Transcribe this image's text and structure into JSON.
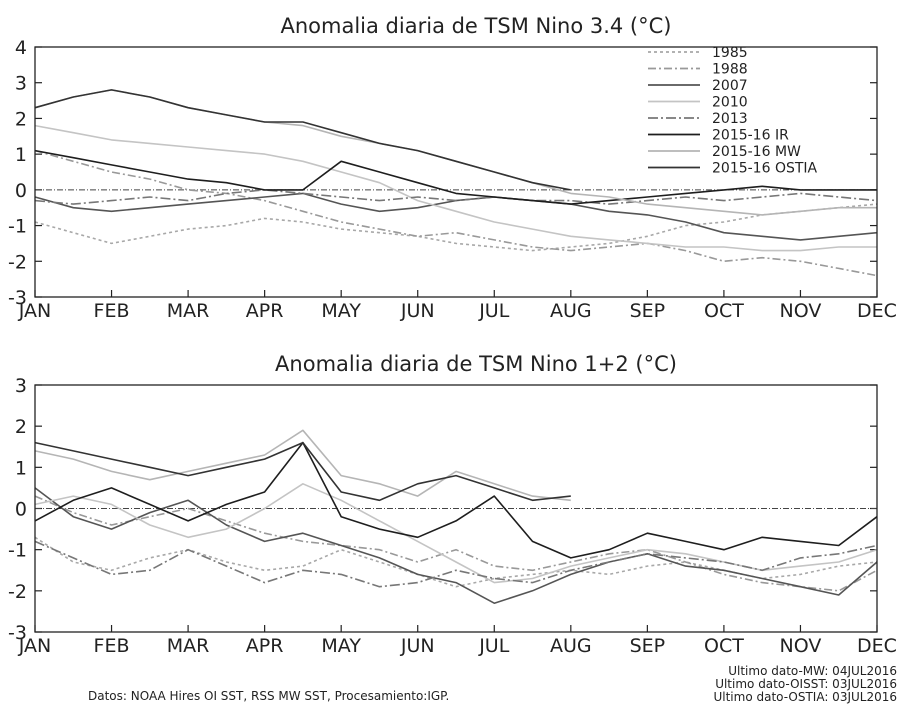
{
  "chart_data": [
    {
      "type": "line",
      "title": "Anomalia diaria de TSM Nino 3.4 (°C)",
      "xlabel": "",
      "ylabel": "",
      "ylim": [
        -3,
        4
      ],
      "yticks": [
        4,
        3,
        2,
        1,
        0,
        -1,
        -2,
        -3
      ],
      "categories": [
        "JAN",
        "FEB",
        "MAR",
        "APR",
        "MAY",
        "JUN",
        "JUL",
        "AUG",
        "SEP",
        "OCT",
        "NOV",
        "DEC"
      ],
      "x": [
        0,
        0.5,
        1,
        1.5,
        2,
        2.5,
        3,
        3.5,
        4,
        4.5,
        5,
        5.5,
        6,
        6.5,
        7,
        7.5,
        8,
        8.5,
        9,
        9.5,
        10,
        10.5,
        11
      ],
      "zero_line": true,
      "legend_position": "top-right",
      "series": [
        {
          "name": "1985",
          "color": "#a8a8a8",
          "dash": "3,3",
          "values": [
            -0.9,
            -1.2,
            -1.5,
            -1.3,
            -1.1,
            -1.0,
            -0.8,
            -0.9,
            -1.1,
            -1.2,
            -1.3,
            -1.5,
            -1.6,
            -1.7,
            -1.6,
            -1.5,
            -1.3,
            -1.0,
            -0.9,
            -0.7,
            -0.6,
            -0.5,
            -0.4
          ]
        },
        {
          "name": "1988",
          "color": "#999999",
          "dash": "8,3,2,3",
          "values": [
            1.1,
            0.8,
            0.5,
            0.3,
            0.0,
            -0.1,
            -0.3,
            -0.6,
            -0.9,
            -1.1,
            -1.3,
            -1.2,
            -1.4,
            -1.6,
            -1.7,
            -1.6,
            -1.5,
            -1.7,
            -2.0,
            -1.9,
            -2.0,
            -2.2,
            -2.4
          ]
        },
        {
          "name": "2007",
          "color": "#555555",
          "dash": "",
          "values": [
            -0.2,
            -0.5,
            -0.6,
            -0.5,
            -0.4,
            -0.3,
            -0.2,
            -0.1,
            -0.4,
            -0.6,
            -0.5,
            -0.3,
            -0.2,
            -0.3,
            -0.4,
            -0.6,
            -0.7,
            -0.9,
            -1.2,
            -1.3,
            -1.4,
            -1.3,
            -1.2
          ]
        },
        {
          "name": "2010",
          "color": "#c4c4c4",
          "dash": "",
          "values": [
            1.8,
            1.6,
            1.4,
            1.3,
            1.2,
            1.1,
            1.0,
            0.8,
            0.5,
            0.2,
            -0.3,
            -0.6,
            -0.9,
            -1.1,
            -1.3,
            -1.4,
            -1.5,
            -1.6,
            -1.6,
            -1.7,
            -1.7,
            -1.6,
            -1.6
          ]
        },
        {
          "name": "2013",
          "color": "#777777",
          "dash": "10,3,2,3",
          "values": [
            -0.3,
            -0.4,
            -0.3,
            -0.2,
            -0.3,
            -0.1,
            0.0,
            -0.1,
            -0.2,
            -0.3,
            -0.2,
            -0.3,
            -0.2,
            -0.3,
            -0.3,
            -0.4,
            -0.3,
            -0.2,
            -0.3,
            -0.2,
            -0.1,
            -0.2,
            -0.3
          ]
        },
        {
          "name": "2015-16 IR",
          "color": "#1e1e1e",
          "dash": "",
          "values": [
            1.1,
            0.9,
            0.7,
            0.5,
            0.3,
            0.2,
            0.0,
            0.0,
            0.8,
            0.5,
            0.2,
            -0.1,
            -0.2,
            -0.3,
            -0.4,
            -0.3,
            -0.2,
            -0.1,
            0.0,
            0.1,
            0.0,
            0.0,
            0.0
          ]
        },
        {
          "name": "2015-16 MW",
          "color": "#b5b5b5",
          "dash": "",
          "values": [
            2.3,
            2.6,
            2.8,
            2.6,
            2.3,
            2.1,
            1.9,
            1.8,
            1.5,
            1.3,
            1.1,
            0.8,
            0.5,
            0.2,
            -0.1,
            -0.2,
            -0.4,
            -0.5,
            -0.6,
            -0.7,
            -0.6,
            -0.5,
            -0.5
          ]
        },
        {
          "name": "2015-16 OSTIA",
          "color": "#333333",
          "dash": "",
          "values": [
            2.3,
            2.6,
            2.8,
            2.6,
            2.3,
            2.1,
            1.9,
            1.9,
            1.6,
            1.3,
            1.1,
            0.8,
            0.5,
            0.2,
            0.0,
            null,
            null,
            null,
            null,
            null,
            null,
            null,
            null
          ]
        }
      ]
    },
    {
      "type": "line",
      "title": "Anomalia diaria de TSM Nino 1+2 (°C)",
      "xlabel": "",
      "ylabel": "",
      "ylim": [
        -3,
        3
      ],
      "yticks": [
        3,
        2,
        1,
        0,
        -1,
        -2,
        -3
      ],
      "categories": [
        "JAN",
        "FEB",
        "MAR",
        "APR",
        "MAY",
        "JUN",
        "JUL",
        "AUG",
        "SEP",
        "OCT",
        "NOV",
        "DEC"
      ],
      "x": [
        0,
        0.5,
        1,
        1.5,
        2,
        2.5,
        3,
        3.5,
        4,
        4.5,
        5,
        5.5,
        6,
        6.5,
        7,
        7.5,
        8,
        8.5,
        9,
        9.5,
        10,
        10.5,
        11
      ],
      "zero_line": true,
      "series": [
        {
          "name": "1985",
          "color": "#a8a8a8",
          "dash": "3,3",
          "values": [
            -0.7,
            -1.3,
            -1.5,
            -1.2,
            -1.0,
            -1.3,
            -1.5,
            -1.4,
            -1.0,
            -1.3,
            -1.6,
            -1.9,
            -1.7,
            -1.6,
            -1.5,
            -1.6,
            -1.4,
            -1.3,
            -1.5,
            -1.7,
            -1.6,
            -1.4,
            -1.3
          ]
        },
        {
          "name": "1988",
          "color": "#999999",
          "dash": "8,3,2,3",
          "values": [
            0.3,
            -0.1,
            -0.4,
            -0.2,
            0.0,
            -0.3,
            -0.6,
            -0.8,
            -0.9,
            -1.0,
            -1.3,
            -1.0,
            -1.4,
            -1.5,
            -1.3,
            -1.1,
            -1.0,
            -1.3,
            -1.6,
            -1.8,
            -1.9,
            -2.0,
            -1.5
          ]
        },
        {
          "name": "2007",
          "color": "#555555",
          "dash": "",
          "values": [
            0.5,
            -0.2,
            -0.5,
            -0.1,
            0.2,
            -0.4,
            -0.8,
            -0.6,
            -0.9,
            -1.2,
            -1.6,
            -1.8,
            -2.3,
            -2.0,
            -1.6,
            -1.3,
            -1.1,
            -1.4,
            -1.5,
            -1.7,
            -1.9,
            -2.1,
            -1.3
          ]
        },
        {
          "name": "2010",
          "color": "#c4c4c4",
          "dash": "",
          "values": [
            0.1,
            0.3,
            0.1,
            -0.4,
            -0.7,
            -0.5,
            0.0,
            0.6,
            0.2,
            -0.3,
            -0.8,
            -1.3,
            -1.8,
            -1.7,
            -1.4,
            -1.2,
            -1.0,
            -1.1,
            -1.3,
            -1.5,
            -1.4,
            -1.3,
            -1.0
          ]
        },
        {
          "name": "2013",
          "color": "#777777",
          "dash": "10,3,2,3",
          "values": [
            -0.8,
            -1.2,
            -1.6,
            -1.5,
            -1.0,
            -1.4,
            -1.8,
            -1.5,
            -1.6,
            -1.9,
            -1.8,
            -1.5,
            -1.7,
            -1.8,
            -1.5,
            -1.3,
            -1.1,
            -1.2,
            -1.3,
            -1.5,
            -1.2,
            -1.1,
            -0.9
          ]
        },
        {
          "name": "2015-16 IR",
          "color": "#1e1e1e",
          "dash": "",
          "values": [
            -0.3,
            0.2,
            0.5,
            0.1,
            -0.3,
            0.1,
            0.4,
            1.6,
            -0.2,
            -0.5,
            -0.7,
            -0.3,
            0.3,
            -0.8,
            -1.2,
            -1.0,
            -0.6,
            -0.8,
            -1.0,
            -0.7,
            -0.8,
            -0.9,
            -0.2
          ]
        },
        {
          "name": "2015-16 MW",
          "color": "#b5b5b5",
          "dash": "",
          "values": [
            1.4,
            1.2,
            0.9,
            0.7,
            0.9,
            1.1,
            1.3,
            1.9,
            0.8,
            0.6,
            0.3,
            0.9,
            0.6,
            0.3,
            0.2,
            null,
            null,
            null,
            null,
            null,
            null,
            null,
            null
          ]
        },
        {
          "name": "2015-16 OSTIA",
          "color": "#333333",
          "dash": "",
          "values": [
            1.6,
            1.4,
            1.2,
            1.0,
            0.8,
            1.0,
            1.2,
            1.6,
            0.4,
            0.2,
            0.6,
            0.8,
            0.5,
            0.2,
            0.3,
            null,
            null,
            null,
            null,
            null,
            null,
            null,
            null
          ]
        }
      ]
    }
  ],
  "footer": {
    "source": "Datos: NOAA Hires OI SST, RSS MW SST,   Procesamiento:IGP.",
    "last_mw": "Ultimo dato-MW: 04JUL2016",
    "last_oisst": "Ultimo dato-OISST: 03JUL2016",
    "last_ostia": "Ultimo dato-OSTIA: 03JUL2016"
  }
}
